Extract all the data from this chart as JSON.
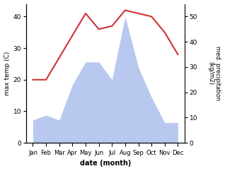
{
  "months": [
    "Jan",
    "Feb",
    "Mar",
    "Apr",
    "May",
    "Jun",
    "Jul",
    "Aug",
    "Sep",
    "Oct",
    "Nov",
    "Dec"
  ],
  "temperature": [
    20,
    20,
    27,
    34,
    41,
    36,
    37,
    42,
    41,
    40,
    35,
    28
  ],
  "precipitation": [
    9,
    11,
    9,
    23,
    32,
    32,
    25,
    50,
    30,
    18,
    8,
    8
  ],
  "temp_color": "#cc3333",
  "precip_color": "#b8c8ee",
  "ylabel_left": "max temp (C)",
  "ylabel_right": "med. precipitation\n(kg/m2)",
  "xlabel": "date (month)",
  "ylim_left": [
    0,
    44
  ],
  "ylim_right": [
    0,
    55
  ],
  "yticks_left": [
    0,
    10,
    20,
    30,
    40
  ],
  "yticks_right": [
    0,
    10,
    20,
    30,
    40,
    50
  ],
  "line_width": 1.5,
  "background_color": "#ffffff"
}
